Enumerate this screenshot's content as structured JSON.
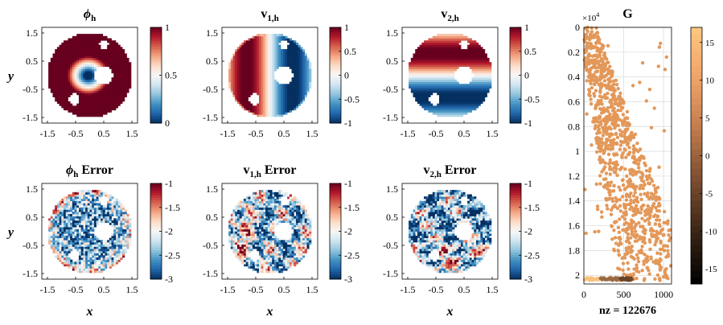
{
  "colors": {
    "diverging": [
      "#053061",
      "#2166ac",
      "#4393c3",
      "#92c5de",
      "#d1e5f0",
      "#f7f7f7",
      "#fddbc7",
      "#f4a582",
      "#d6604d",
      "#b2182b",
      "#67001f"
    ],
    "copper": [
      "#000000",
      "#3a2416",
      "#7a4c2f",
      "#c07a4a",
      "#f0a268",
      "#ffc77f"
    ],
    "axis": "#000000",
    "grid": "#d9d9d9",
    "sparse_dot": "#e39859"
  },
  "panels": [
    {
      "id": "phi",
      "title_main": "ϕ",
      "title_sub": "h",
      "title_suffix": "",
      "ylabel": "y",
      "xlabel": "",
      "x_ticks": [
        "-1.5",
        "-0.5",
        "0.5",
        "1.5"
      ],
      "y_ticks": [
        "1.5",
        "0.5",
        "-0.5",
        "-1.5"
      ],
      "colorbar_ticks": [
        "1",
        "0.5",
        "0"
      ],
      "colorbar_range": [
        0,
        1
      ],
      "field": "phi"
    },
    {
      "id": "v1",
      "title_main": "v",
      "title_sub": "1,h",
      "title_suffix": "",
      "ylabel": "",
      "xlabel": "",
      "x_ticks": [
        "-1.5",
        "-0.5",
        "0.5",
        "1.5"
      ],
      "y_ticks": [
        "1.5",
        "0.5",
        "-0.5",
        "-1.5"
      ],
      "colorbar_ticks": [
        "1",
        "0.5",
        "0",
        "-0.5",
        "-1"
      ],
      "colorbar_range": [
        -1,
        1
      ],
      "field": "v1"
    },
    {
      "id": "v2",
      "title_main": "v",
      "title_sub": "2,h",
      "title_suffix": "",
      "ylabel": "",
      "xlabel": "",
      "x_ticks": [
        "-1.5",
        "-0.5",
        "0.5",
        "1.5"
      ],
      "y_ticks": [
        "1.5",
        "0.5",
        "-0.5",
        "-1.5"
      ],
      "colorbar_ticks": [
        "1",
        "0.5",
        "0",
        "-0.5",
        "-1"
      ],
      "colorbar_range": [
        -1,
        1
      ],
      "field": "v2"
    },
    {
      "id": "phi_err",
      "title_main": "ϕ",
      "title_sub": "h",
      "title_suffix": " Error",
      "ylabel": "y",
      "xlabel": "x",
      "x_ticks": [
        "-1.5",
        "-0.5",
        "0.5",
        "1.5"
      ],
      "y_ticks": [
        "1.5",
        "0.5",
        "-0.5",
        "-1.5"
      ],
      "colorbar_ticks": [
        "-1",
        "-1.5",
        "-2",
        "-2.5",
        "-3"
      ],
      "colorbar_range": [
        -3,
        -1
      ],
      "field": "err1"
    },
    {
      "id": "v1_err",
      "title_main": "v",
      "title_sub": "1,h",
      "title_suffix": " Error",
      "ylabel": "",
      "xlabel": "x",
      "x_ticks": [
        "-1.5",
        "-0.5",
        "0.5",
        "1.5"
      ],
      "y_ticks": [
        "1.5",
        "0.5",
        "-0.5",
        "-1.5"
      ],
      "colorbar_ticks": [
        "-1",
        "-1.5",
        "-2",
        "-2.5",
        "-3"
      ],
      "colorbar_range": [
        -3,
        -1
      ],
      "field": "err2"
    },
    {
      "id": "v2_err",
      "title_main": "v",
      "title_sub": "2,h",
      "title_suffix": " Error",
      "ylabel": "",
      "xlabel": "x",
      "x_ticks": [
        "-1.5",
        "-0.5",
        "0.5",
        "1.5"
      ],
      "y_ticks": [
        "1.5",
        "0.5",
        "-0.5",
        "-1.5"
      ],
      "colorbar_ticks": [
        "-1",
        "-1.5",
        "-2",
        "-2.5",
        "-3"
      ],
      "colorbar_range": [
        -3,
        -1
      ],
      "field": "err3"
    }
  ],
  "sparsity": {
    "title": "G",
    "exponent_label": "×10",
    "exponent_power": "4",
    "y_ticks": [
      "0",
      "0.2",
      "0.4",
      "0.6",
      "0.8",
      "1",
      "1.2",
      "1.4",
      "1.6",
      "1.8",
      "2"
    ],
    "x_ticks": [
      "0",
      "500",
      "1000"
    ],
    "xlabel": "nz = 122676",
    "colorbar_ticks": [
      "15",
      "10",
      "5",
      "0",
      "-5",
      "-10",
      "-15"
    ],
    "colorbar_range": [
      -17,
      17
    ]
  },
  "chart_data": [
    {
      "type": "heatmap",
      "title": "ϕh",
      "ylabel": "y",
      "xlim": [
        -1.7,
        1.7
      ],
      "ylim": [
        -1.7,
        1.7
      ],
      "colorbar": [
        0,
        1
      ],
      "domain": "unit disk (r=1.5) with circular holes at (0.5,0.0), (0.5,1.1), (-0.55,-0.85)"
    },
    {
      "type": "heatmap",
      "title": "v1,h",
      "xlim": [
        -1.7,
        1.7
      ],
      "ylim": [
        -1.7,
        1.7
      ],
      "colorbar": [
        -1,
        1
      ]
    },
    {
      "type": "heatmap",
      "title": "v2,h",
      "xlim": [
        -1.7,
        1.7
      ],
      "ylim": [
        -1.7,
        1.7
      ],
      "colorbar": [
        -1,
        1
      ]
    },
    {
      "type": "heatmap",
      "title": "ϕh Error",
      "xlabel": "x",
      "ylabel": "y",
      "xlim": [
        -1.7,
        1.7
      ],
      "ylim": [
        -1.7,
        1.7
      ],
      "colorbar": [
        -3,
        -1
      ]
    },
    {
      "type": "heatmap",
      "title": "v1,h Error",
      "xlabel": "x",
      "xlim": [
        -1.7,
        1.7
      ],
      "ylim": [
        -1.7,
        1.7
      ],
      "colorbar": [
        -3,
        -1
      ]
    },
    {
      "type": "heatmap",
      "title": "v2,h Error",
      "xlabel": "x",
      "xlim": [
        -1.7,
        1.7
      ],
      "ylim": [
        -1.7,
        1.7
      ],
      "colorbar": [
        -3,
        -1
      ]
    },
    {
      "type": "scatter",
      "title": "G",
      "xlabel": "nz = 122676",
      "xlim": [
        0,
        1100
      ],
      "ylim": [
        0,
        20700
      ],
      "y_scale_factor": 10000,
      "colorbar": [
        -17,
        17
      ],
      "nonzeros": 122676
    }
  ]
}
